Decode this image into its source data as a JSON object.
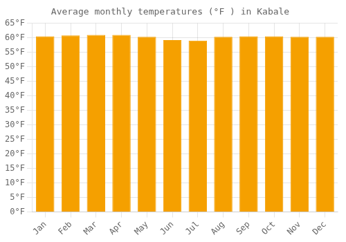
{
  "chart_data": {
    "type": "bar",
    "title": "Average monthly temperatures (°F ) in Kabale",
    "categories": [
      "Jan",
      "Feb",
      "Mar",
      "Apr",
      "May",
      "Jun",
      "Jul",
      "Aug",
      "Sep",
      "Oct",
      "Nov",
      "Dec"
    ],
    "values": [
      60.5,
      60.8,
      61.0,
      61.0,
      60.3,
      59.2,
      59.0,
      60.3,
      60.5,
      60.5,
      60.3,
      60.3
    ],
    "color": "#F5A000",
    "ylim": [
      0,
      65
    ],
    "yticks": [
      {
        "value": 0,
        "label": "0°F"
      },
      {
        "value": 5,
        "label": "5°F"
      },
      {
        "value": 10,
        "label": "10°F"
      },
      {
        "value": 15,
        "label": "15°F"
      },
      {
        "value": 20,
        "label": "20°F"
      },
      {
        "value": 25,
        "label": "25°F"
      },
      {
        "value": 30,
        "label": "30°F"
      },
      {
        "value": 35,
        "label": "35°F"
      },
      {
        "value": 40,
        "label": "40°F"
      },
      {
        "value": 45,
        "label": "45°F"
      },
      {
        "value": 50,
        "label": "50°F"
      },
      {
        "value": 55,
        "label": "55°F"
      },
      {
        "value": 60,
        "label": "60°F"
      },
      {
        "value": 65,
        "label": "65°F"
      }
    ],
    "grid": true
  }
}
